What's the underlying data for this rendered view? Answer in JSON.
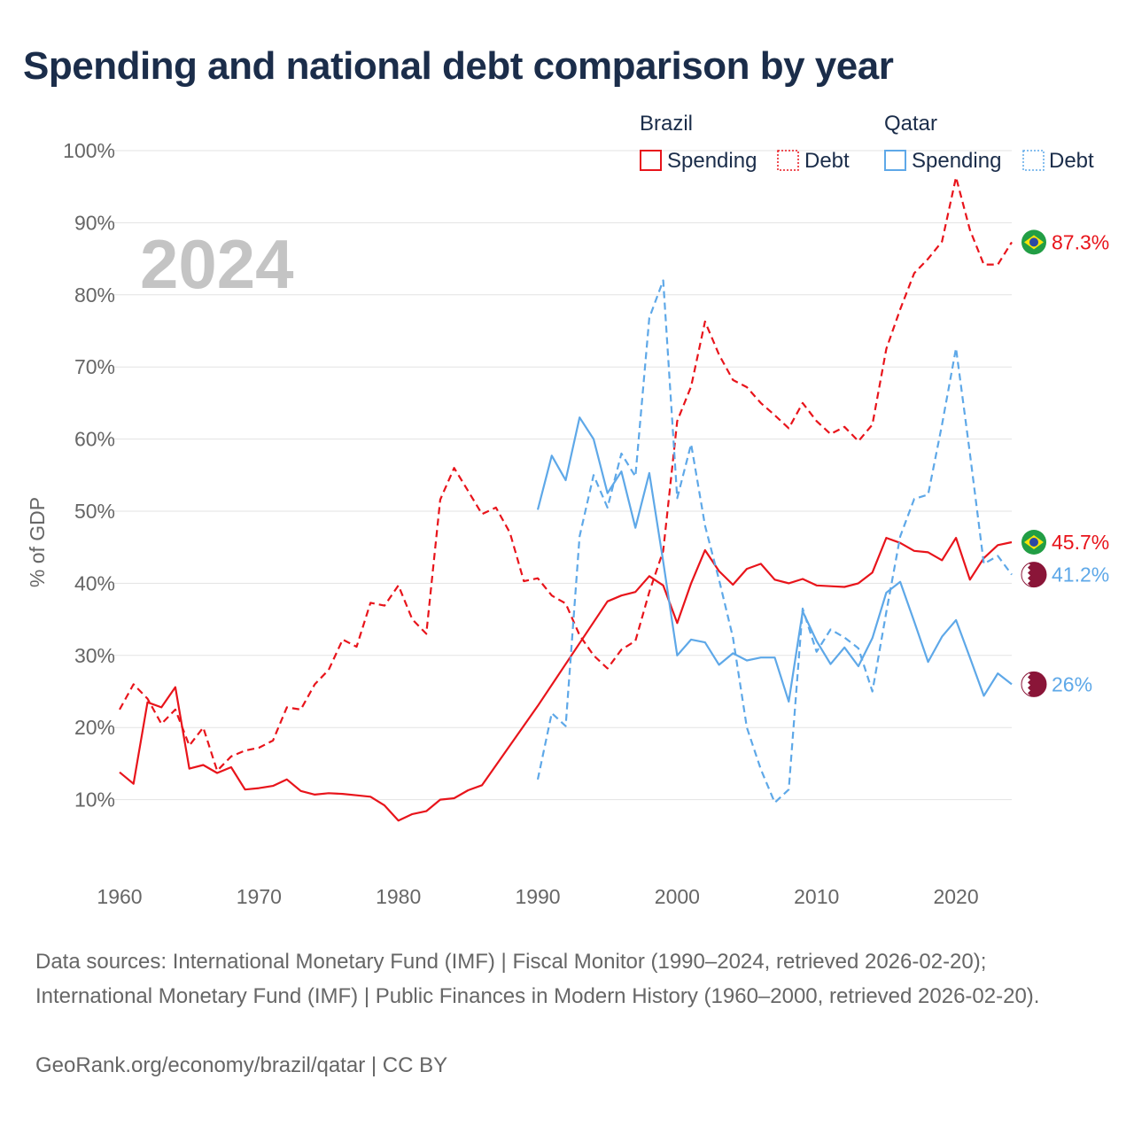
{
  "title": "Spending and national debt comparison by year",
  "year_watermark": "2024",
  "legend": {
    "groups": [
      {
        "country": "Brazil",
        "items": [
          "Spending",
          "Debt"
        ]
      },
      {
        "country": "Qatar",
        "items": [
          "Spending",
          "Debt"
        ]
      }
    ]
  },
  "footer": {
    "sources": "Data sources: International Monetary Fund (IMF) | Fiscal Monitor (1990–2024, retrieved 2026-02-20); International Monetary Fund (IMF) | Public Finances in Modern History (1960–2000, retrieved 2026-02-20).",
    "credit": "GeoRank.org/economy/brazil/qatar | CC BY"
  },
  "colors": {
    "brazil": "#e8141b",
    "qatar": "#5ea8e8",
    "grid": "#e3e3e3",
    "axis_text": "#666666",
    "watermark": "#c4c4c4",
    "qatar_flag": "#8a1538",
    "brazil_flag_green": "#229e45",
    "brazil_flag_yellow": "#f8e509",
    "brazil_flag_blue": "#2b49a3"
  },
  "chart_data": {
    "type": "line",
    "ylabel": "% of GDP",
    "xlabel": "",
    "xlim": [
      1960,
      2024
    ],
    "ylim": [
      0,
      100
    ],
    "x_ticks": [
      1960,
      1970,
      1980,
      1990,
      2000,
      2010,
      2020
    ],
    "y_ticks": [
      10,
      20,
      30,
      40,
      50,
      60,
      70,
      80,
      90,
      100
    ],
    "y_tick_labels": [
      "10%",
      "20%",
      "30%",
      "40%",
      "50%",
      "60%",
      "70%",
      "80%",
      "90%",
      "100%"
    ],
    "series": [
      {
        "name": "Brazil Debt",
        "country": "Brazil",
        "metric": "Debt",
        "style": "dashed",
        "end_label": "87.3%",
        "points": [
          [
            1960,
            22.5
          ],
          [
            1961,
            26
          ],
          [
            1962,
            24
          ],
          [
            1963,
            20.5
          ],
          [
            1964,
            22.5
          ],
          [
            1965,
            17.5
          ],
          [
            1966,
            20
          ],
          [
            1967,
            14
          ],
          [
            1968,
            16
          ],
          [
            1969,
            16.8
          ],
          [
            1970,
            17.2
          ],
          [
            1971,
            18.2
          ],
          [
            1972,
            22.8
          ],
          [
            1973,
            22.5
          ],
          [
            1974,
            26
          ],
          [
            1975,
            28
          ],
          [
            1976,
            32.2
          ],
          [
            1977,
            31.2
          ],
          [
            1978,
            37.3
          ],
          [
            1979,
            36.9
          ],
          [
            1980,
            39.7
          ],
          [
            1981,
            35
          ],
          [
            1982,
            33
          ],
          [
            1983,
            51.6
          ],
          [
            1984,
            56
          ],
          [
            1985,
            52.8
          ],
          [
            1986,
            49.6
          ],
          [
            1987,
            50.5
          ],
          [
            1988,
            47
          ],
          [
            1989,
            40.3
          ],
          [
            1990,
            40.7
          ],
          [
            1991,
            38.3
          ],
          [
            1992,
            37.2
          ],
          [
            1993,
            32.8
          ],
          [
            1994,
            30
          ],
          [
            1995,
            28.2
          ],
          [
            1996,
            30.8
          ],
          [
            1997,
            32
          ],
          [
            1998,
            38.8
          ],
          [
            1999,
            44.5
          ],
          [
            2000,
            62.5
          ],
          [
            2001,
            67.3
          ],
          [
            2002,
            76.3
          ],
          [
            2003,
            71.7
          ],
          [
            2004,
            68.2
          ],
          [
            2005,
            67.2
          ],
          [
            2006,
            65
          ],
          [
            2007,
            63.3
          ],
          [
            2008,
            61.5
          ],
          [
            2009,
            65
          ],
          [
            2010,
            62.5
          ],
          [
            2011,
            60.7
          ],
          [
            2012,
            61.7
          ],
          [
            2013,
            59.7
          ],
          [
            2014,
            62
          ],
          [
            2015,
            72.5
          ],
          [
            2016,
            78
          ],
          [
            2017,
            83
          ],
          [
            2018,
            85
          ],
          [
            2019,
            87.4
          ],
          [
            2020,
            96.3
          ],
          [
            2021,
            89
          ],
          [
            2022,
            84.2
          ],
          [
            2023,
            84.2
          ],
          [
            2024,
            87.3
          ]
        ]
      },
      {
        "name": "Brazil Spending",
        "country": "Brazil",
        "metric": "Spending",
        "style": "solid",
        "end_label": "45.7%",
        "points": [
          [
            1960,
            13.8
          ],
          [
            1961,
            12.2
          ],
          [
            1962,
            23.5
          ],
          [
            1963,
            22.8
          ],
          [
            1964,
            25.6
          ],
          [
            1965,
            14.3
          ],
          [
            1966,
            14.8
          ],
          [
            1967,
            13.7
          ],
          [
            1968,
            14.5
          ],
          [
            1969,
            11.4
          ],
          [
            1970,
            11.6
          ],
          [
            1971,
            11.9
          ],
          [
            1972,
            12.8
          ],
          [
            1973,
            11.2
          ],
          [
            1974,
            10.7
          ],
          [
            1975,
            10.9
          ],
          [
            1976,
            10.8
          ],
          [
            1977,
            10.6
          ],
          [
            1978,
            10.4
          ],
          [
            1979,
            9.2
          ],
          [
            1980,
            7.1
          ],
          [
            1981,
            8
          ],
          [
            1982,
            8.4
          ],
          [
            1983,
            10
          ],
          [
            1984,
            10.2
          ],
          [
            1985,
            11.3
          ],
          [
            1986,
            12
          ],
          [
            1990,
            23
          ],
          [
            1995,
            37.5
          ],
          [
            1996,
            38.3
          ],
          [
            1997,
            38.8
          ],
          [
            1998,
            41
          ],
          [
            1999,
            39.7
          ],
          [
            2000,
            34.5
          ],
          [
            2001,
            40
          ],
          [
            2002,
            44.6
          ],
          [
            2003,
            41.7
          ],
          [
            2004,
            39.8
          ],
          [
            2005,
            42
          ],
          [
            2006,
            42.7
          ],
          [
            2007,
            40.5
          ],
          [
            2008,
            40
          ],
          [
            2009,
            40.6
          ],
          [
            2010,
            39.7
          ],
          [
            2011,
            39.6
          ],
          [
            2012,
            39.5
          ],
          [
            2013,
            40
          ],
          [
            2014,
            41.5
          ],
          [
            2015,
            46.3
          ],
          [
            2016,
            45.6
          ],
          [
            2017,
            44.5
          ],
          [
            2018,
            44.3
          ],
          [
            2019,
            43.2
          ],
          [
            2020,
            46.3
          ],
          [
            2021,
            40.5
          ],
          [
            2022,
            43.5
          ],
          [
            2023,
            45.3
          ],
          [
            2024,
            45.7
          ]
        ]
      },
      {
        "name": "Qatar Debt",
        "country": "Qatar",
        "metric": "Debt",
        "style": "dashed",
        "end_label": "41.2%",
        "points": [
          [
            1990,
            12.8
          ],
          [
            1991,
            22
          ],
          [
            1992,
            20.2
          ],
          [
            1993,
            46.5
          ],
          [
            1994,
            55
          ],
          [
            1995,
            50.5
          ],
          [
            1996,
            58
          ],
          [
            1997,
            54.8
          ],
          [
            1998,
            76.8
          ],
          [
            1999,
            82
          ],
          [
            2000,
            51.8
          ],
          [
            2001,
            59.3
          ],
          [
            2002,
            48
          ],
          [
            2003,
            40.5
          ],
          [
            2004,
            32.5
          ],
          [
            2005,
            20
          ],
          [
            2006,
            14.2
          ],
          [
            2007,
            9.6
          ],
          [
            2008,
            11.4
          ],
          [
            2009,
            36.5
          ],
          [
            2010,
            30.5
          ],
          [
            2011,
            33.6
          ],
          [
            2012,
            32.5
          ],
          [
            2013,
            31
          ],
          [
            2014,
            25
          ],
          [
            2015,
            36
          ],
          [
            2016,
            46.5
          ],
          [
            2017,
            51.7
          ],
          [
            2018,
            52.3
          ],
          [
            2019,
            62
          ],
          [
            2020,
            72.6
          ],
          [
            2021,
            58
          ],
          [
            2022,
            42.7
          ],
          [
            2023,
            43.8
          ],
          [
            2024,
            41.2
          ]
        ]
      },
      {
        "name": "Qatar Spending",
        "country": "Qatar",
        "metric": "Spending",
        "style": "solid",
        "end_label": "26%",
        "points": [
          [
            1990,
            50.2
          ],
          [
            1991,
            57.7
          ],
          [
            1992,
            54.3
          ],
          [
            1993,
            63
          ],
          [
            1994,
            60
          ],
          [
            1995,
            52.5
          ],
          [
            1996,
            55.5
          ],
          [
            1997,
            47.7
          ],
          [
            1998,
            55.3
          ],
          [
            1999,
            43
          ],
          [
            2000,
            30
          ],
          [
            2001,
            32.2
          ],
          [
            2002,
            31.8
          ],
          [
            2003,
            28.7
          ],
          [
            2004,
            30.3
          ],
          [
            2005,
            29.3
          ],
          [
            2006,
            29.7
          ],
          [
            2007,
            29.7
          ],
          [
            2008,
            23.6
          ],
          [
            2009,
            36.1
          ],
          [
            2010,
            32
          ],
          [
            2011,
            28.8
          ],
          [
            2012,
            31.1
          ],
          [
            2013,
            28.5
          ],
          [
            2014,
            32.4
          ],
          [
            2015,
            38.7
          ],
          [
            2016,
            40.2
          ],
          [
            2017,
            34.7
          ],
          [
            2018,
            29.1
          ],
          [
            2019,
            32.6
          ],
          [
            2020,
            34.9
          ],
          [
            2021,
            29.7
          ],
          [
            2022,
            24.4
          ],
          [
            2023,
            27.5
          ],
          [
            2024,
            26
          ]
        ]
      }
    ]
  }
}
